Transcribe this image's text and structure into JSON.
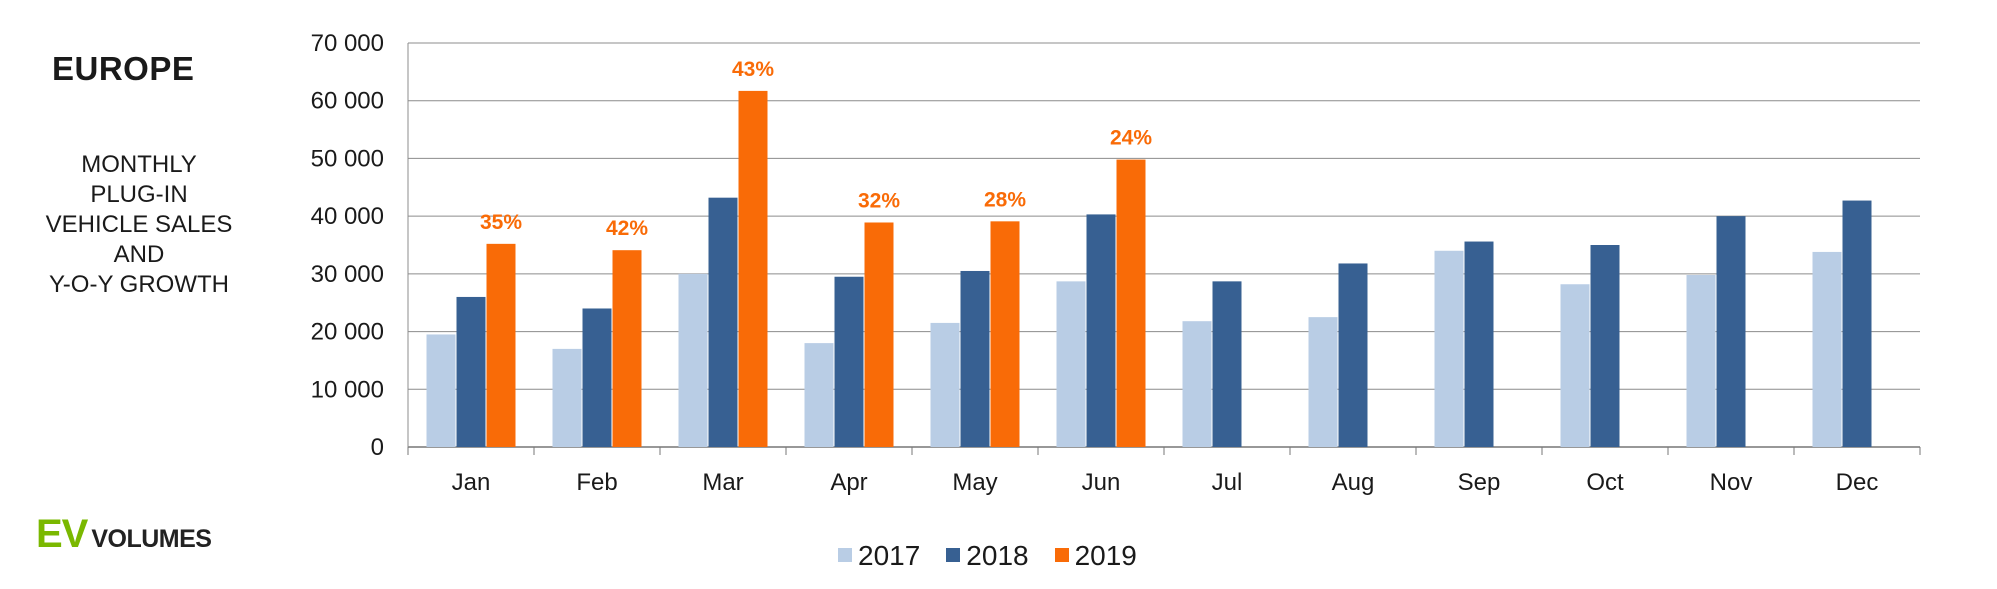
{
  "header": {
    "title": "EUROPE",
    "subtitle_lines": [
      "MONTHLY",
      "PLUG-IN",
      "VEHICLE SALES",
      "AND",
      "Y-O-Y GROWTH"
    ]
  },
  "logo": {
    "ev": "EV",
    "volumes": "VOLUMES"
  },
  "chart_data": {
    "type": "bar",
    "categories": [
      "Jan",
      "Feb",
      "Mar",
      "Apr",
      "May",
      "Jun",
      "Jul",
      "Aug",
      "Sep",
      "Oct",
      "Nov",
      "Dec"
    ],
    "series": [
      {
        "name": "2017",
        "color": "#b9cde5",
        "values": [
          19500,
          17000,
          30000,
          18000,
          21500,
          28700,
          21800,
          22500,
          34000,
          28200,
          29800,
          33800
        ]
      },
      {
        "name": "2018",
        "color": "#376092",
        "values": [
          26000,
          24000,
          43200,
          29500,
          30500,
          40300,
          28700,
          31800,
          35600,
          35000,
          40000,
          42700
        ]
      },
      {
        "name": "2019",
        "color": "#f96b07",
        "values": [
          35200,
          34100,
          61700,
          38900,
          39100,
          49800,
          null,
          null,
          null,
          null,
          null,
          null
        ]
      }
    ],
    "data_labels": {
      "series": "2019",
      "color": "#f96b07",
      "values": [
        "35%",
        "42%",
        "43%",
        "32%",
        "28%",
        "24%",
        null,
        null,
        null,
        null,
        null,
        null
      ]
    },
    "yticks": [
      "0",
      "10 000",
      "20 000",
      "30 000",
      "40 000",
      "50 000",
      "60 000",
      "70 000"
    ],
    "ylim": [
      0,
      70000
    ],
    "grid": true,
    "legend_position": "bottom"
  }
}
